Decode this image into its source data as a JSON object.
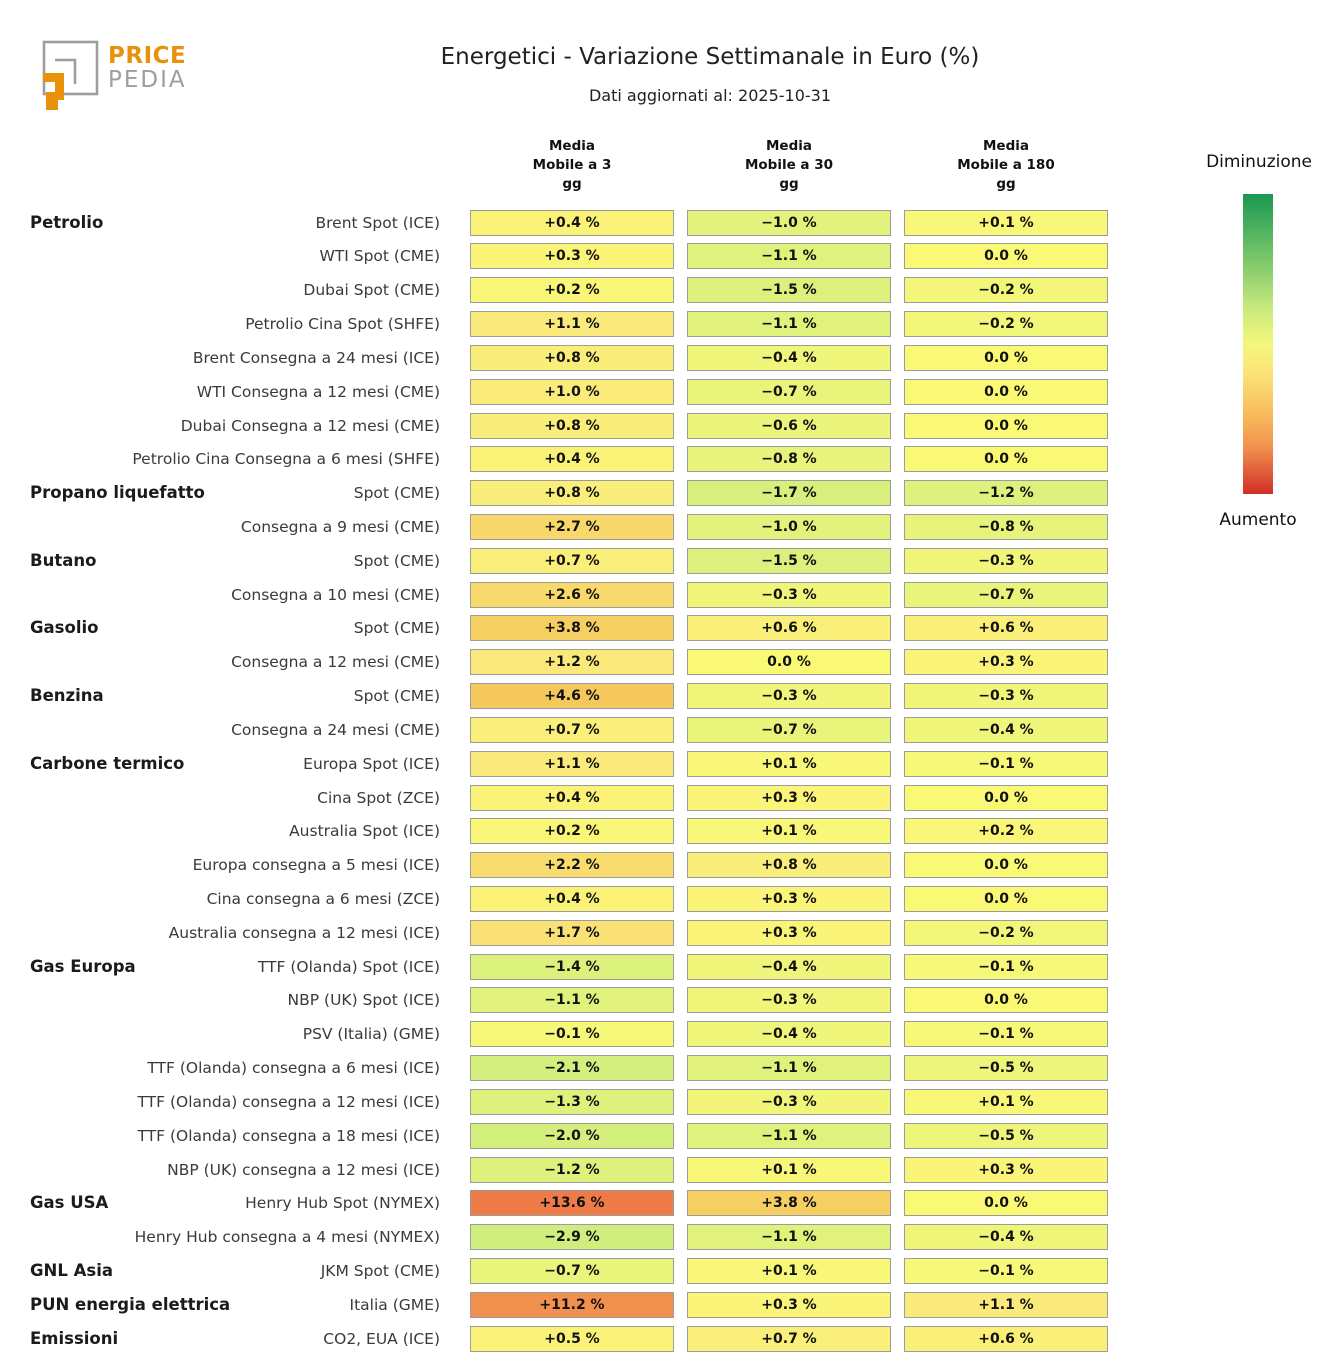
{
  "logo": {
    "brand_line1": "PRICE",
    "brand_line2": "PEDIA"
  },
  "header": {
    "title": "Energetici - Variazione Settimanale in Euro (%)",
    "subtitle": "Dati aggiornati al: 2025-10-31"
  },
  "legend": {
    "top_label": "Diminuzione",
    "bottom_label": "Aumento",
    "gradient_top_color": "#1a9850",
    "gradient_mid_color": "#f9f976",
    "gradient_bottom_color": "#cf2e27"
  },
  "chart_data": {
    "type": "heatmap",
    "title": "Energetici - Variazione Settimanale in Euro (%)",
    "subtitle": "Dati aggiornati al: 2025-10-31",
    "unit": "%",
    "column_headers": [
      [
        "Media",
        "Mobile a 3",
        "gg"
      ],
      [
        "Media",
        "Mobile a 30",
        "gg"
      ],
      [
        "Media",
        "Mobile a 180",
        "gg"
      ]
    ],
    "columns": [
      "Media Mobile a 3 gg",
      "Media Mobile a 30 gg",
      "Media Mobile a 180 gg"
    ],
    "rows": [
      {
        "group": "Petrolio",
        "label": "Brent Spot (ICE)",
        "values": [
          0.4,
          -1.0,
          0.1
        ]
      },
      {
        "group": "",
        "label": "WTI Spot (CME)",
        "values": [
          0.3,
          -1.1,
          0.0
        ]
      },
      {
        "group": "",
        "label": "Dubai Spot (CME)",
        "values": [
          0.2,
          -1.5,
          -0.2
        ]
      },
      {
        "group": "",
        "label": "Petrolio Cina Spot (SHFE)",
        "values": [
          1.1,
          -1.1,
          -0.2
        ]
      },
      {
        "group": "",
        "label": "Brent Consegna a 24 mesi (ICE)",
        "values": [
          0.8,
          -0.4,
          0.0
        ]
      },
      {
        "group": "",
        "label": "WTI Consegna a 12 mesi (CME)",
        "values": [
          1.0,
          -0.7,
          0.0
        ]
      },
      {
        "group": "",
        "label": "Dubai Consegna a 12 mesi (CME)",
        "values": [
          0.8,
          -0.6,
          0.0
        ]
      },
      {
        "group": "",
        "label": "Petrolio Cina Consegna a 6 mesi (SHFE)",
        "values": [
          0.4,
          -0.8,
          0.0
        ]
      },
      {
        "group": "Propano liquefatto",
        "label": "Spot (CME)",
        "values": [
          0.8,
          -1.7,
          -1.2
        ]
      },
      {
        "group": "",
        "label": "Consegna a 9 mesi (CME)",
        "values": [
          2.7,
          -1.0,
          -0.8
        ]
      },
      {
        "group": "Butano",
        "label": "Spot (CME)",
        "values": [
          0.7,
          -1.5,
          -0.3
        ]
      },
      {
        "group": "",
        "label": "Consegna a 10 mesi (CME)",
        "values": [
          2.6,
          -0.3,
          -0.7
        ]
      },
      {
        "group": "Gasolio",
        "label": "Spot (CME)",
        "values": [
          3.8,
          0.6,
          0.6
        ]
      },
      {
        "group": "",
        "label": "Consegna a 12 mesi (CME)",
        "values": [
          1.2,
          0.0,
          0.3
        ]
      },
      {
        "group": "Benzina",
        "label": "Spot (CME)",
        "values": [
          4.6,
          -0.3,
          -0.3
        ]
      },
      {
        "group": "",
        "label": "Consegna a 24 mesi (CME)",
        "values": [
          0.7,
          -0.7,
          -0.4
        ]
      },
      {
        "group": "Carbone termico",
        "label": "Europa Spot (ICE)",
        "values": [
          1.1,
          0.1,
          -0.1
        ]
      },
      {
        "group": "",
        "label": "Cina Spot (ZCE)",
        "values": [
          0.4,
          0.3,
          0.0
        ]
      },
      {
        "group": "",
        "label": "Australia Spot (ICE)",
        "values": [
          0.2,
          0.1,
          0.2
        ]
      },
      {
        "group": "",
        "label": "Europa consegna a 5 mesi (ICE)",
        "values": [
          2.2,
          0.8,
          0.0
        ]
      },
      {
        "group": "",
        "label": "Cina consegna a 6 mesi (ZCE)",
        "values": [
          0.4,
          0.3,
          0.0
        ]
      },
      {
        "group": "",
        "label": "Australia consegna a 12 mesi (ICE)",
        "values": [
          1.7,
          0.3,
          -0.2
        ]
      },
      {
        "group": "Gas Europa",
        "label": "TTF (Olanda) Spot (ICE)",
        "values": [
          -1.4,
          -0.4,
          -0.1
        ]
      },
      {
        "group": "",
        "label": "NBP (UK) Spot (ICE)",
        "values": [
          -1.1,
          -0.3,
          0.0
        ]
      },
      {
        "group": "",
        "label": "PSV (Italia) (GME)",
        "values": [
          -0.1,
          -0.4,
          -0.1
        ]
      },
      {
        "group": "",
        "label": "TTF (Olanda) consegna a 6 mesi (ICE)",
        "values": [
          -2.1,
          -1.1,
          -0.5
        ]
      },
      {
        "group": "",
        "label": "TTF (Olanda) consegna a 12 mesi (ICE)",
        "values": [
          -1.3,
          -0.3,
          0.1
        ]
      },
      {
        "group": "",
        "label": "TTF (Olanda) consegna a 18 mesi (ICE)",
        "values": [
          -2.0,
          -1.1,
          -0.5
        ]
      },
      {
        "group": "",
        "label": "NBP (UK) consegna a 12 mesi (ICE)",
        "values": [
          -1.2,
          0.1,
          0.3
        ]
      },
      {
        "group": "Gas USA",
        "label": "Henry Hub Spot (NYMEX)",
        "values": [
          13.6,
          3.8,
          0.0
        ]
      },
      {
        "group": "",
        "label": "Henry Hub consegna a 4 mesi (NYMEX)",
        "values": [
          -2.9,
          -1.1,
          -0.4
        ]
      },
      {
        "group": "GNL Asia",
        "label": "JKM Spot (CME)",
        "values": [
          -0.7,
          0.1,
          -0.1
        ]
      },
      {
        "group": "PUN energia elettrica",
        "label": "Italia (GME)",
        "values": [
          11.2,
          0.3,
          1.1
        ]
      },
      {
        "group": "Emissioni",
        "label": "CO2, EUA (ICE)",
        "values": [
          0.5,
          0.7,
          0.6
        ]
      }
    ],
    "color_scale": {
      "decrease_label": "Diminuzione",
      "increase_label": "Aumento",
      "anchors": [
        [
          -20.0,
          "#1a9850"
        ],
        [
          -8.0,
          "#a3dc6e"
        ],
        [
          -3.0,
          "#cfee7d"
        ],
        [
          -1.8,
          "#d6ef7d"
        ],
        [
          -1.2,
          "#dff17c"
        ],
        [
          -0.7,
          "#e9f47b"
        ],
        [
          -0.3,
          "#f1f67a"
        ],
        [
          -0.05,
          "#f7f877"
        ],
        [
          0.0,
          "#f9f976"
        ],
        [
          0.3,
          "#faf478"
        ],
        [
          0.8,
          "#faee7a"
        ],
        [
          1.3,
          "#fae77b"
        ],
        [
          2.0,
          "#f9dd70"
        ],
        [
          2.8,
          "#f8d769"
        ],
        [
          4.0,
          "#f6cd62"
        ],
        [
          5.0,
          "#f5c45c"
        ],
        [
          8.0,
          "#f4a855"
        ],
        [
          11.2,
          "#f29050"
        ],
        [
          14.0,
          "#ec7645"
        ],
        [
          20.0,
          "#d73027"
        ]
      ]
    }
  }
}
